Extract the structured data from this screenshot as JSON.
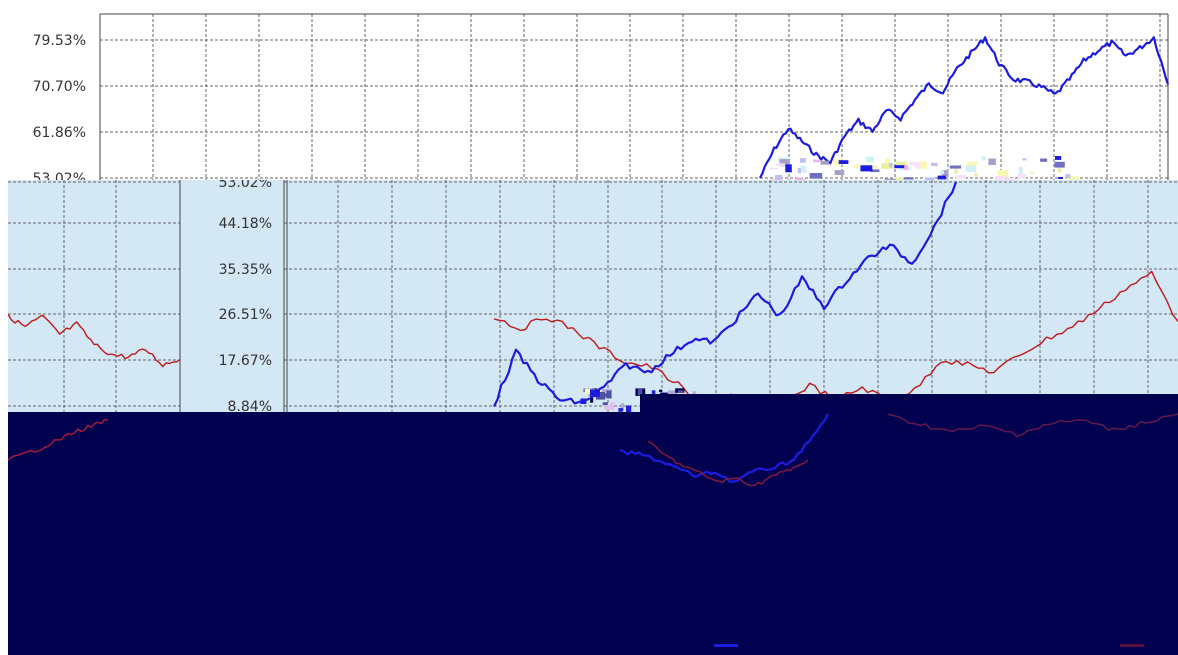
{
  "colors": {
    "series_blue": "#1c1ce0",
    "series_red": "#c01818",
    "plot_background_top": "#ffffff",
    "plot_background_mid": "#d4e7f5",
    "overlay_dark": "#01014f"
  },
  "chart_data": [
    {
      "type": "line",
      "title": "",
      "xlabel": "",
      "ylabel": "",
      "grid": true,
      "y_ticks": [
        "79.53%",
        "70.70%",
        "61.86%",
        "53.02%"
      ],
      "ylim": [
        50,
        83
      ],
      "series": [
        {
          "values": [
            53.0,
            58.5,
            62.5,
            60.0,
            57.5,
            56.0,
            61.0,
            64.0,
            62.0,
            66.0,
            64.5,
            68.0,
            71.0,
            69.5,
            74.0,
            77.0,
            80.0,
            75.0,
            72.0,
            71.5,
            70.5,
            69.0,
            72.0,
            75.5,
            77.5,
            79.0,
            76.5,
            78.0,
            80.0,
            71.0
          ]
        }
      ]
    },
    {
      "type": "line",
      "title": "",
      "xlabel": "",
      "ylabel": "",
      "grid": true,
      "y_ticks": [
        "53.02%",
        "44.18%",
        "35.35%",
        "26.51%",
        "17.67%",
        "8.84%"
      ],
      "ylim": [
        6,
        56
      ],
      "series": [
        {
          "values": [
            9.0,
            19.5,
            14.0,
            10.0,
            9.5,
            12.5,
            17.0,
            15.5,
            19.0,
            22.0,
            21.5,
            26.0,
            31.0,
            26.5,
            34.0,
            28.5,
            33.5,
            38.0,
            40.5,
            37.0,
            44.0,
            53.0
          ]
        },
        {
          "values": [
            26.5,
            24.0,
            26.5,
            24.0,
            20.5,
            17.5,
            16.5,
            13.0,
            8.5,
            11.0,
            7.5,
            9.5,
            13.0,
            10.0,
            12.5,
            10.0,
            12.0,
            18.0,
            17.0,
            15.5,
            19.0,
            22.0,
            24.5,
            28.0,
            32.0,
            35.0,
            25.5
          ]
        }
      ]
    }
  ]
}
